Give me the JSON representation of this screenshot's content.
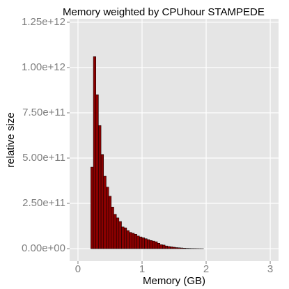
{
  "chart_data": {
    "type": "histogram",
    "title": "Memory weighted by CPUhour  STAMPEDE",
    "x_label": "Memory (GB)",
    "y_label": "relative size",
    "bins": [
      0,
      0.04,
      0.08,
      0.12,
      0.16,
      0.2,
      0.24,
      0.28,
      0.32,
      0.36,
      0.4,
      0.44,
      0.48,
      0.52,
      0.56,
      0.6,
      0.64,
      0.68,
      0.72,
      0.76,
      0.8,
      0.84,
      0.88,
      0.92,
      0.96,
      1,
      1.04,
      1.08,
      1.12,
      1.16,
      1.2,
      1.24,
      1.28,
      1.32,
      1.36,
      1.4,
      1.44,
      1.48,
      1.52,
      1.56,
      1.6,
      1.64,
      1.68,
      1.72,
      1.76,
      1.8,
      1.84,
      1.88,
      1.92,
      1.96,
      2,
      2.04,
      2.08,
      2.12,
      2.16,
      2.2,
      2.24,
      2.28,
      2.32,
      2.36,
      2.4,
      2.44,
      2.48,
      2.52,
      2.56,
      2.6,
      2.64,
      2.68,
      2.72,
      2.76,
      2.8,
      2.84,
      2.88,
      2.92,
      2.96,
      3
    ],
    "values": [
      0,
      0,
      0,
      0,
      0,
      450000000000.0,
      1060000000000.0,
      850000000000.0,
      680000000000.0,
      520000000000.0,
      400000000000.0,
      340000000000.0,
      290000000000.0,
      230000000000.0,
      190000000000.0,
      170000000000.0,
      150000000000.0,
      120000000000.0,
      115000000000.0,
      100000000000.0,
      90000000000.0,
      85000000000.0,
      80000000000.0,
      70000000000.0,
      65000000000.0,
      60000000000.0,
      55000000000.0,
      50000000000.0,
      45000000000.0,
      42000000000.0,
      38000000000.0,
      30000000000.0,
      22000000000.0,
      20000000000.0,
      15000000000.0,
      12000000000.0,
      10000000000.0,
      8000000000.0,
      6000000000.0,
      5000000000.0,
      4000000000.0,
      3000000000.0,
      2000000000.0,
      1500000000.0,
      1000000000.0,
      800000000.0,
      500000000.0,
      300000000.0,
      200000000.0,
      0,
      0,
      0,
      0,
      0,
      0,
      0,
      0,
      0,
      0,
      0,
      0,
      0,
      0,
      0,
      0,
      0,
      0,
      0,
      0,
      0,
      0,
      0,
      0,
      0,
      0
    ],
    "color": "#8b0000",
    "edgecolor": "#000000",
    "xlim": [
      -0.13,
      3.13
    ],
    "xticks": [
      0,
      1,
      2,
      3
    ],
    "ylim": [
      -69000000000.0,
      1269000000000.0
    ],
    "yticks": [
      {
        "value": 0,
        "label": "0.00e+00"
      },
      {
        "value": 250000000000.0,
        "label": "2.50e+11"
      },
      {
        "value": 500000000000.0,
        "label": "5.00e+11"
      },
      {
        "value": 750000000000.0,
        "label": "7.50e+11"
      },
      {
        "value": 1000000000000.0,
        "label": "1.00e+12"
      },
      {
        "value": 1250000000000.0,
        "label": "1.25e+12"
      }
    ],
    "grid": true
  }
}
